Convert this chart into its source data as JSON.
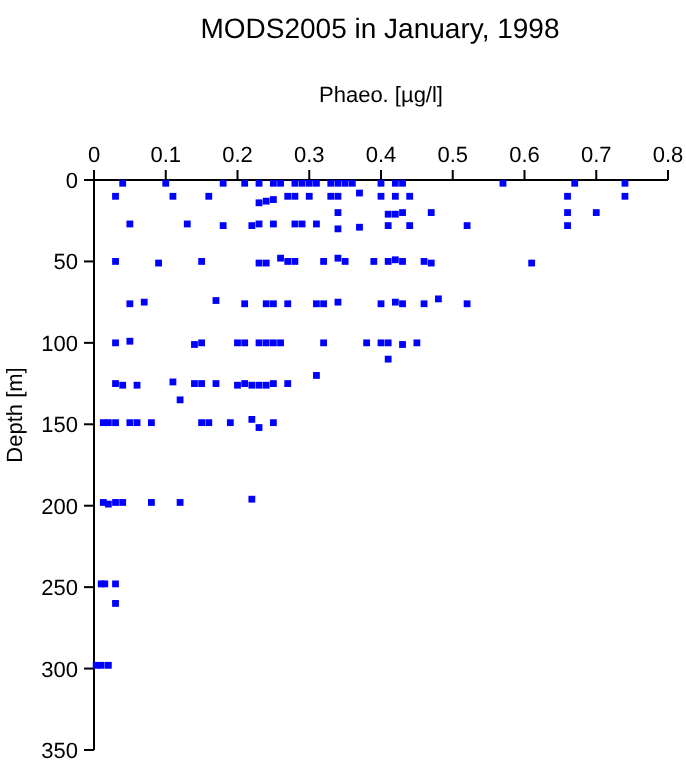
{
  "chart_data": {
    "type": "scatter",
    "title": "MODS2005 in January, 1998",
    "xlabel": "Phaeo. [µg/l]",
    "ylabel": "Depth [m]",
    "xlim": [
      0,
      0.8
    ],
    "xticks": [
      0,
      0.1,
      0.2,
      0.3,
      0.4,
      0.5,
      0.6,
      0.7,
      0.8
    ],
    "ylim": [
      350,
      0
    ],
    "yticks": [
      0,
      50,
      100,
      150,
      200,
      250,
      300,
      350
    ],
    "marker": "square",
    "grid": false,
    "series": [
      {
        "color": "#0000ff",
        "x": [
          0.04,
          0.1,
          0.18,
          0.21,
          0.23,
          0.25,
          0.26,
          0.28,
          0.29,
          0.3,
          0.31,
          0.33,
          0.34,
          0.35,
          0.36,
          0.4,
          0.42,
          0.43,
          0.57,
          0.67,
          0.74,
          0.03,
          0.11,
          0.16,
          0.23,
          0.24,
          0.25,
          0.27,
          0.28,
          0.3,
          0.33,
          0.34,
          0.37,
          0.4,
          0.42,
          0.44,
          0.66,
          0.74,
          0.34,
          0.41,
          0.42,
          0.43,
          0.47,
          0.66,
          0.7,
          0.05,
          0.13,
          0.18,
          0.22,
          0.23,
          0.25,
          0.28,
          0.29,
          0.31,
          0.34,
          0.37,
          0.41,
          0.44,
          0.52,
          0.66,
          0.03,
          0.09,
          0.15,
          0.23,
          0.24,
          0.26,
          0.27,
          0.28,
          0.32,
          0.34,
          0.35,
          0.39,
          0.41,
          0.42,
          0.43,
          0.46,
          0.47,
          0.61,
          0.05,
          0.07,
          0.17,
          0.21,
          0.24,
          0.25,
          0.27,
          0.31,
          0.32,
          0.34,
          0.4,
          0.42,
          0.43,
          0.46,
          0.48,
          0.52,
          0.03,
          0.05,
          0.14,
          0.15,
          0.2,
          0.21,
          0.23,
          0.24,
          0.25,
          0.26,
          0.32,
          0.38,
          0.4,
          0.41,
          0.43,
          0.45,
          0.41,
          0.03,
          0.04,
          0.06,
          0.11,
          0.14,
          0.15,
          0.17,
          0.2,
          0.21,
          0.22,
          0.23,
          0.24,
          0.25,
          0.27,
          0.31,
          0.12,
          0.013,
          0.02,
          0.03,
          0.05,
          0.06,
          0.08,
          0.15,
          0.16,
          0.19,
          0.22,
          0.23,
          0.25,
          0.013,
          0.02,
          0.03,
          0.04,
          0.08,
          0.12,
          0.22,
          0.01,
          0.015,
          0.03,
          0.03,
          0.003,
          0.01,
          0.02
        ],
        "values": [
          2,
          2,
          2,
          2,
          2,
          2,
          2,
          2,
          2,
          2,
          2,
          2,
          2,
          2,
          2,
          2,
          2,
          2,
          2,
          2,
          2,
          10,
          10,
          10,
          14,
          13,
          12,
          10,
          10,
          10,
          10,
          10,
          8,
          10,
          10,
          10,
          10,
          10,
          20,
          21,
          21,
          20,
          20,
          20,
          20,
          27,
          27,
          28,
          28,
          27,
          27,
          27,
          27,
          27,
          30,
          29,
          28,
          28,
          28,
          28,
          50,
          51,
          50,
          51,
          51,
          48,
          50,
          50,
          50,
          48,
          50,
          50,
          50,
          49,
          50,
          50,
          51,
          51,
          76,
          75,
          74,
          76,
          76,
          76,
          76,
          76,
          76,
          75,
          76,
          75,
          76,
          76,
          73,
          76,
          100,
          99,
          101,
          100,
          100,
          100,
          100,
          100,
          100,
          100,
          100,
          100,
          100,
          100,
          101,
          100,
          110,
          125,
          126,
          126,
          124,
          125,
          125,
          125,
          126,
          125,
          126,
          126,
          126,
          125,
          125,
          120,
          135,
          149,
          149,
          149,
          149,
          149,
          149,
          149,
          149,
          149,
          147,
          152,
          149,
          198,
          199,
          198,
          198,
          198,
          198,
          196,
          248,
          248,
          248,
          260,
          298,
          298,
          298
        ]
      }
    ]
  }
}
